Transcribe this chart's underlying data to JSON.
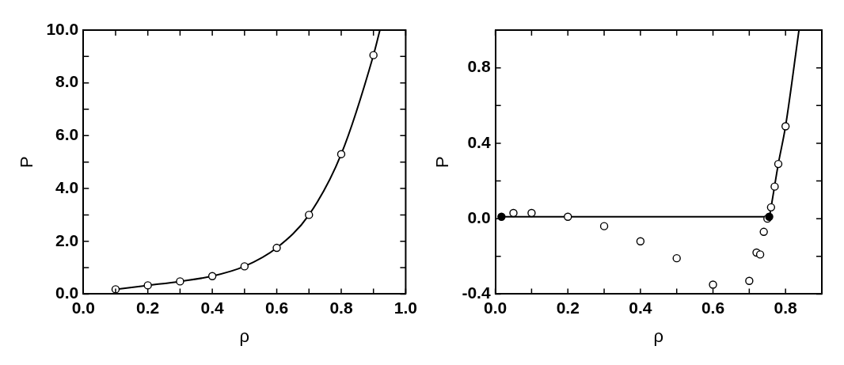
{
  "chart_data": [
    {
      "type": "scatter",
      "xlabel": "ρ",
      "ylabel": "P",
      "marker": "circle",
      "grid": false,
      "legend": false,
      "xlim": [
        0,
        1
      ],
      "xticks": [
        {
          "value": 0,
          "label": "0.0"
        },
        {
          "value": 0.1,
          "label": null
        },
        {
          "value": 0.2,
          "label": "0.2"
        },
        {
          "value": 0.3,
          "label": null
        },
        {
          "value": 0.4,
          "label": "0.4"
        },
        {
          "value": 0.5,
          "label": null
        },
        {
          "value": 0.6,
          "label": "0.6"
        },
        {
          "value": 0.7,
          "label": null
        },
        {
          "value": 0.8,
          "label": "0.8"
        },
        {
          "value": 0.9,
          "label": null
        },
        {
          "value": 1,
          "label": "1.0"
        }
      ],
      "ylim": [
        0,
        10
      ],
      "yticks": [
        {
          "value": 0,
          "label": "0.0"
        },
        {
          "value": 1,
          "label": null
        },
        {
          "value": 2,
          "label": "2.0"
        },
        {
          "value": 3,
          "label": null
        },
        {
          "value": 4,
          "label": "4.0"
        },
        {
          "value": 5,
          "label": null
        },
        {
          "value": 6,
          "label": "6.0"
        },
        {
          "value": 7,
          "label": null
        },
        {
          "value": 8,
          "label": "8.0"
        },
        {
          "value": 9,
          "label": null
        },
        {
          "value": 10,
          "label": "10.0"
        }
      ],
      "series": [
        {
          "type": "line",
          "marker": "none",
          "color": "#000000",
          "x": [
            0.1,
            0.2,
            0.3,
            0.4,
            0.5,
            0.6,
            0.7,
            0.8,
            0.9,
            0.92
          ],
          "values": [
            0.18,
            0.33,
            0.48,
            0.68,
            1.05,
            1.75,
            3.0,
            5.3,
            9.05,
            10
          ]
        },
        {
          "color": "#ffffff",
          "x": [
            0.1,
            0.2,
            0.3,
            0.4,
            0.5,
            0.6,
            0.7,
            0.8,
            0.9
          ],
          "values": [
            0.18,
            0.33,
            0.48,
            0.68,
            1.05,
            1.75,
            3.0,
            5.3,
            9.05
          ]
        }
      ]
    },
    {
      "type": "scatter",
      "xlabel": "ρ",
      "ylabel": "P",
      "marker": "circle",
      "grid": false,
      "legend": false,
      "xlim": [
        0,
        0.9
      ],
      "xticks": [
        {
          "value": 0,
          "label": "0.0"
        },
        {
          "value": 0.1,
          "label": null
        },
        {
          "value": 0.2,
          "label": "0.2"
        },
        {
          "value": 0.3,
          "label": null
        },
        {
          "value": 0.4,
          "label": "0.4"
        },
        {
          "value": 0.5,
          "label": null
        },
        {
          "value": 0.6,
          "label": "0.6"
        },
        {
          "value": 0.7,
          "label": null
        },
        {
          "value": 0.8,
          "label": "0.8"
        }
      ],
      "ylim": [
        -0.4,
        1.0
      ],
      "yticks": [
        -0.4,
        {
          "value": -0.2,
          "label": null
        },
        {
          "value": 0,
          "label": "0.0"
        },
        {
          "value": 0.2,
          "label": null
        },
        0.4,
        {
          "value": 0.6,
          "label": null
        },
        0.8
      ],
      "series": [
        {
          "type": "line",
          "marker": "none",
          "color": "#000000",
          "x": [
            0.017,
            0.755,
            0.76,
            0.78,
            0.8,
            0.837
          ],
          "values": [
            0.01,
            0.01,
            0.06,
            0.29,
            0.49,
            1.0
          ]
        },
        {
          "color": "#ffffff",
          "x": [
            0.05,
            0.1,
            0.2,
            0.3,
            0.4,
            0.5,
            0.6,
            0.7,
            0.72,
            0.73,
            0.74,
            0.75,
            0.76,
            0.77,
            0.78,
            0.8
          ],
          "values": [
            0.03,
            0.03,
            0.01,
            -0.04,
            -0.12,
            -0.21,
            -0.35,
            -0.33,
            -0.18,
            -0.19,
            -0.07,
            0.0,
            0.06,
            0.17,
            0.29,
            0.49
          ]
        },
        {
          "color": "#000000",
          "x": [
            0.017,
            0.755
          ],
          "values": [
            0.01,
            0.01
          ]
        }
      ]
    }
  ]
}
